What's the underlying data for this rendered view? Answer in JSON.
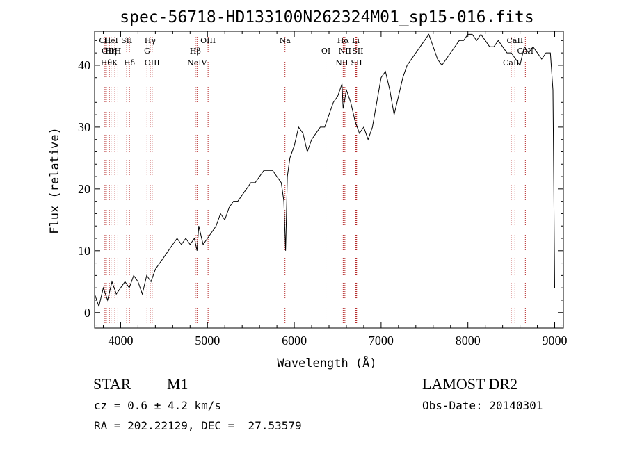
{
  "chart_data": {
    "type": "line",
    "title": "spec-56718-HD133100N262324M01_sp15-016.fits",
    "xlabel": "Wavelength (Å)",
    "ylabel": "Flux (relative)",
    "xlim": [
      3700,
      9100
    ],
    "ylim": [
      -2.5,
      45.5
    ],
    "xticks": [
      4000,
      5000,
      6000,
      7000,
      8000,
      9000
    ],
    "xtick_labels": [
      "4000",
      "5000",
      "6000",
      "7000",
      "8000",
      "9000"
    ],
    "yticks": [
      0,
      10,
      20,
      30,
      40
    ],
    "ytick_labels": [
      "0",
      "10",
      "20",
      "30",
      "40"
    ],
    "grid": false,
    "series": [
      {
        "x": [
          3700,
          3750,
          3800,
          3850,
          3900,
          3950,
          4000,
          4050,
          4100,
          4150,
          4200,
          4250,
          4300,
          4350,
          4400,
          4450,
          4500,
          4550,
          4600,
          4650,
          4700,
          4750,
          4800,
          4850,
          4880,
          4900,
          4950,
          5000,
          5050,
          5100,
          5150,
          5200,
          5250,
          5300,
          5350,
          5400,
          5450,
          5500,
          5550,
          5600,
          5650,
          5700,
          5750,
          5800,
          5850,
          5880,
          5900,
          5920,
          5950,
          6000,
          6050,
          6100,
          6150,
          6200,
          6250,
          6300,
          6350,
          6400,
          6450,
          6500,
          6550,
          6563,
          6600,
          6650,
          6700,
          6750,
          6800,
          6850,
          6900,
          6950,
          7000,
          7050,
          7100,
          7150,
          7200,
          7250,
          7300,
          7350,
          7400,
          7450,
          7500,
          7550,
          7600,
          7650,
          7700,
          7750,
          7800,
          7850,
          7900,
          7950,
          8000,
          8050,
          8100,
          8150,
          8200,
          8250,
          8300,
          8350,
          8400,
          8450,
          8500,
          8550,
          8600,
          8650,
          8700,
          8750,
          8800,
          8850,
          8900,
          8950,
          8980,
          9000
        ],
        "y": [
          3,
          1,
          4,
          2,
          5,
          3,
          4,
          5,
          4,
          6,
          5,
          3,
          6,
          5,
          7,
          8,
          9,
          10,
          11,
          12,
          11,
          12,
          11,
          12,
          10,
          14,
          11,
          12,
          13,
          14,
          16,
          15,
          17,
          18,
          18,
          19,
          20,
          21,
          21,
          22,
          23,
          23,
          23,
          22,
          21,
          18,
          10,
          22,
          25,
          27,
          30,
          29,
          26,
          28,
          29,
          30,
          30,
          32,
          34,
          35,
          37,
          33,
          36,
          34,
          31,
          29,
          30,
          28,
          30,
          34,
          38,
          39,
          36,
          32,
          35,
          38,
          40,
          41,
          42,
          43,
          44,
          45,
          43,
          41,
          40,
          41,
          42,
          43,
          44,
          44,
          45,
          45,
          44,
          45,
          44,
          43,
          43,
          44,
          43,
          42,
          42,
          41,
          40,
          43,
          42,
          43,
          42,
          41,
          42,
          42,
          36,
          4
        ]
      }
    ],
    "line_markers": [
      {
        "label": "CII",
        "wavelength": 3820
      },
      {
        "label": "OIII",
        "wavelength": 3869
      },
      {
        "label": "Hθ",
        "wavelength": 3835
      },
      {
        "label": "HeI",
        "wavelength": 3889
      },
      {
        "label": "Hη",
        "wavelength": 3889
      },
      {
        "label": "K",
        "wavelength": 3934
      },
      {
        "label": "SII",
        "wavelength": 4070
      },
      {
        "label": "H",
        "wavelength": 3968
      },
      {
        "label": "Hδ",
        "wavelength": 4101
      },
      {
        "label": "Hγ",
        "wavelength": 4340
      },
      {
        "label": "G",
        "wavelength": 4304
      },
      {
        "label": "OIII",
        "wavelength": 4363
      },
      {
        "label": "OIII",
        "wavelength": 5007
      },
      {
        "label": "Hβ",
        "wavelength": 4861
      },
      {
        "label": "NeIV",
        "wavelength": 4880
      },
      {
        "label": "Na",
        "wavelength": 5893
      },
      {
        "label": "OI",
        "wavelength": 6364
      },
      {
        "label": "NII",
        "wavelength": 6548
      },
      {
        "label": "Li",
        "wavelength": 6708
      },
      {
        "label": "NII",
        "wavelength": 6583
      },
      {
        "label": "SII",
        "wavelength": 6717
      },
      {
        "label": "Hα",
        "wavelength": 6563
      },
      {
        "label": "SII",
        "wavelength": 6731
      },
      {
        "label": "CaII",
        "wavelength": 8498
      },
      {
        "label": "CaII",
        "wavelength": 8542
      },
      {
        "label": "CaII",
        "wavelength": 8662
      }
    ],
    "line_color": "#000000",
    "marker_color": "#b22222"
  },
  "info": {
    "class": "STAR",
    "subclass": "M1",
    "survey": "LAMOST DR2",
    "cz": "cz = 0.6 ± 4.2 km/s",
    "obs_date": "Obs-Date: 20140301",
    "coords": "RA = 202.22129, DEC =  27.53579"
  }
}
